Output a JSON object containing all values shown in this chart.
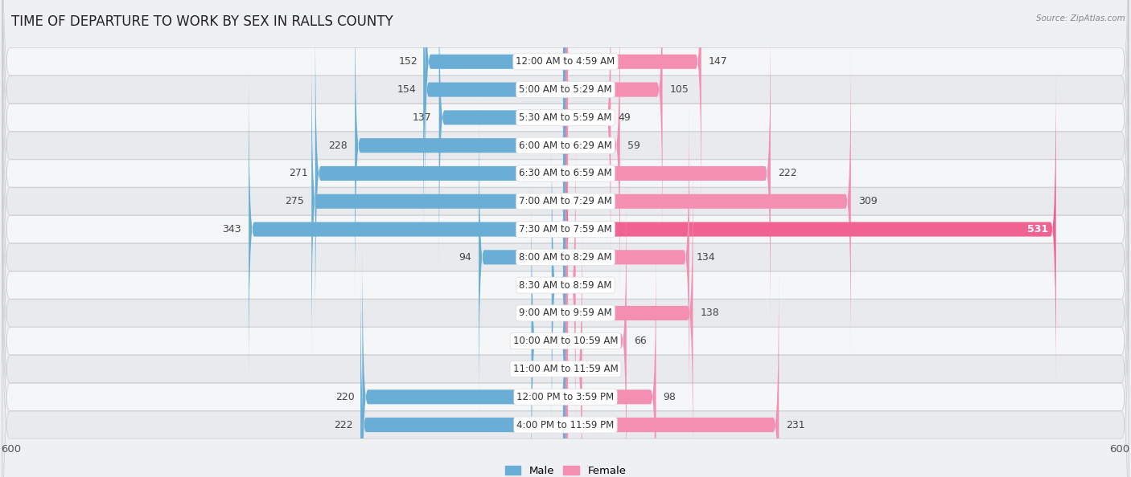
{
  "title": "TIME OF DEPARTURE TO WORK BY SEX IN RALLS COUNTY",
  "source": "Source: ZipAtlas.com",
  "categories": [
    "12:00 AM to 4:59 AM",
    "5:00 AM to 5:29 AM",
    "5:30 AM to 5:59 AM",
    "6:00 AM to 6:29 AM",
    "6:30 AM to 6:59 AM",
    "7:00 AM to 7:29 AM",
    "7:30 AM to 7:59 AM",
    "8:00 AM to 8:29 AM",
    "8:30 AM to 8:59 AM",
    "9:00 AM to 9:59 AM",
    "10:00 AM to 10:59 AM",
    "11:00 AM to 11:59 AM",
    "12:00 PM to 3:59 PM",
    "4:00 PM to 11:59 PM"
  ],
  "male": [
    152,
    154,
    137,
    228,
    271,
    275,
    343,
    94,
    15,
    0,
    37,
    0,
    220,
    222
  ],
  "female": [
    147,
    105,
    49,
    59,
    222,
    309,
    531,
    134,
    11,
    138,
    66,
    18,
    98,
    231
  ],
  "male_color": "#6aaed6",
  "female_color": "#f48fb1",
  "bar_height": 0.52,
  "xlim": 600,
  "bg_light": "#f0f2f5",
  "bg_dark": "#e3e6ea",
  "label_fontsize": 9,
  "title_fontsize": 12,
  "cat_fontsize": 8.5,
  "axis_label_fontsize": 9.5,
  "value_color": "#444444",
  "cat_label_color": "#333333",
  "female_531_color": "#e91e8c"
}
